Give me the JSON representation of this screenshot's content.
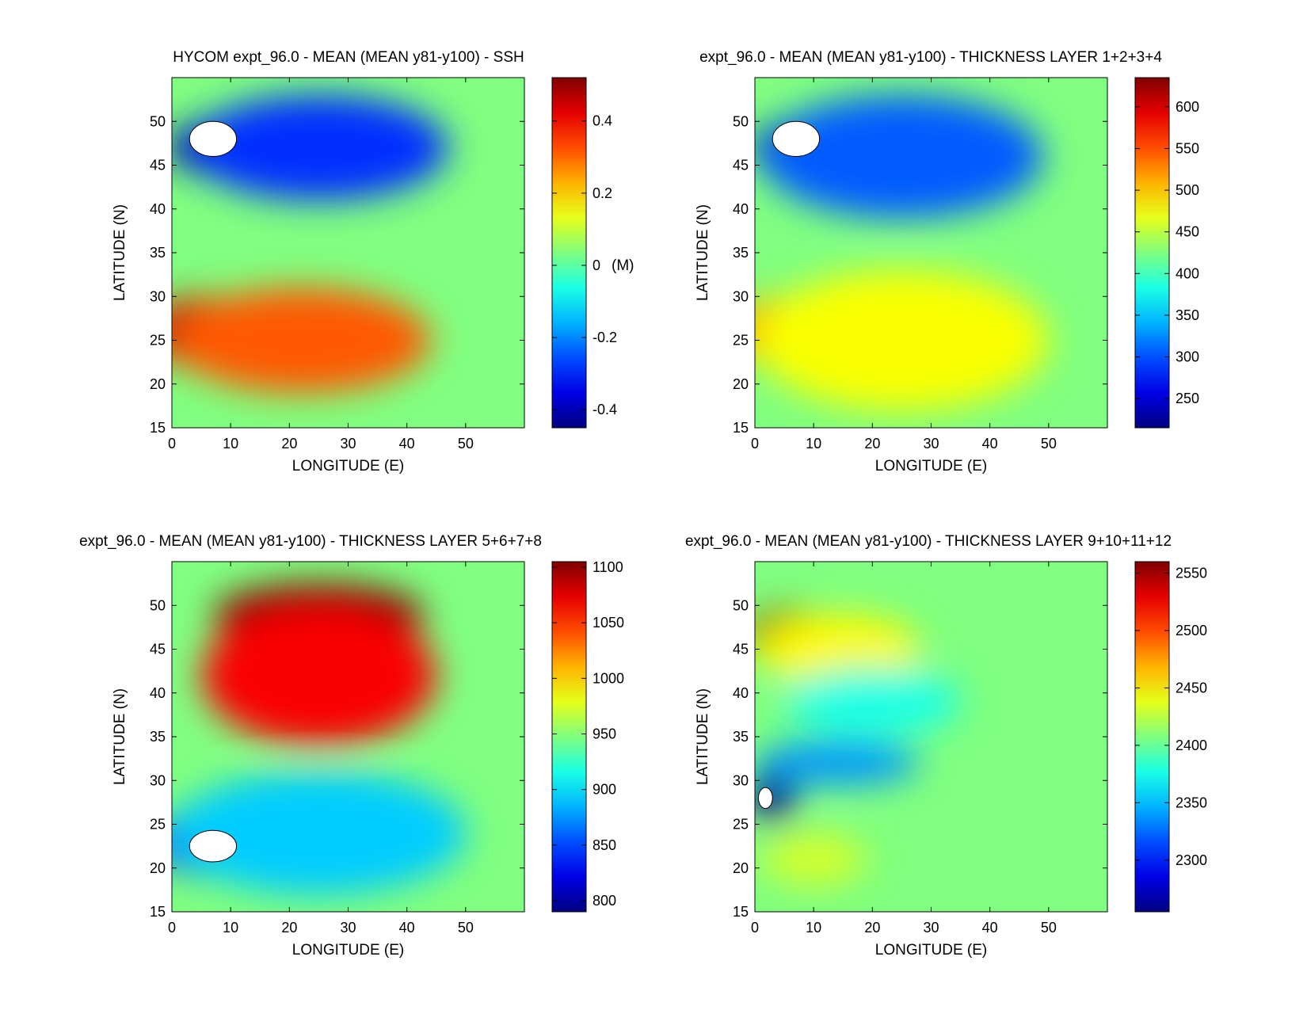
{
  "chart_data": [
    {
      "type": "heatmap",
      "title": "HYCOM expt_96.0 - MEAN (MEAN y81-y100) - SSH",
      "xlabel": "LONGITUDE (E)",
      "ylabel": "LATITUDE (N)",
      "xlim": [
        0,
        60
      ],
      "ylim": [
        15,
        55
      ],
      "xticks": [
        0,
        10,
        20,
        30,
        40,
        50
      ],
      "yticks": [
        15,
        20,
        25,
        30,
        35,
        40,
        45,
        50
      ],
      "colorbar": {
        "range": [
          -0.45,
          0.52
        ],
        "ticks": [
          0.4,
          0.2,
          0,
          -0.2,
          -0.4
        ],
        "unit": "(M)"
      },
      "field": {
        "features": [
          {
            "value": -0.47,
            "lon": 12,
            "lat": 47,
            "sx": 13,
            "sy": 3.5
          },
          {
            "value": -0.32,
            "lon": 25,
            "lat": 47,
            "sx": 22,
            "sy": 6
          },
          {
            "value": 0.42,
            "lon": 5,
            "lat": 26,
            "sx": 10,
            "sy": 4
          },
          {
            "value": 0.28,
            "lon": 22,
            "lat": 25,
            "sx": 22,
            "sy": 6
          }
        ],
        "holes": [
          {
            "lon": 7,
            "lat": 48,
            "rx": 4,
            "ry": 2
          }
        ]
      }
    },
    {
      "type": "heatmap",
      "title": "expt_96.0 - MEAN (MEAN y81-y100) - THICKNESS LAYER 1+2+3+4",
      "xlabel": "LONGITUDE (E)",
      "ylabel": "LATITUDE (N)",
      "xlim": [
        0,
        60
      ],
      "ylim": [
        15,
        55
      ],
      "xticks": [
        0,
        10,
        20,
        30,
        40,
        50
      ],
      "yticks": [
        15,
        20,
        25,
        30,
        35,
        40,
        45,
        50
      ],
      "colorbar": {
        "range": [
          215,
          635
        ],
        "ticks": [
          600,
          550,
          500,
          450,
          400,
          350,
          300,
          250
        ],
        "unit": ""
      },
      "field": {
        "features": [
          {
            "value": -230,
            "lon": 12,
            "lat": 47,
            "sx": 13,
            "sy": 3.5
          },
          {
            "value": -120,
            "lon": 25,
            "lat": 46,
            "sx": 24,
            "sy": 7
          },
          {
            "value": 90,
            "lon": 5,
            "lat": 26,
            "sx": 10,
            "sy": 4
          },
          {
            "value": 50,
            "lon": 25,
            "lat": 25,
            "sx": 25,
            "sy": 8
          }
        ],
        "holes": [
          {
            "lon": 7,
            "lat": 48,
            "rx": 4,
            "ry": 2
          }
        ]
      }
    },
    {
      "type": "heatmap",
      "title": "expt_96.0 - MEAN (MEAN y81-y100) - THICKNESS LAYER 5+6+7+8",
      "xlabel": "LONGITUDE (E)",
      "ylabel": "LATITUDE (N)",
      "xlim": [
        0,
        60
      ],
      "ylim": [
        15,
        55
      ],
      "xticks": [
        0,
        10,
        20,
        30,
        40,
        50
      ],
      "yticks": [
        15,
        20,
        25,
        30,
        35,
        40,
        45,
        50
      ],
      "colorbar": {
        "range": [
          790,
          1105
        ],
        "ticks": [
          1100,
          1050,
          1000,
          950,
          900,
          850,
          800
        ],
        "unit": ""
      },
      "field": {
        "features": [
          {
            "value": 200,
            "lon": 25,
            "lat": 49,
            "sx": 18,
            "sy": 3.5
          },
          {
            "value": 120,
            "lon": 25,
            "lat": 42,
            "sx": 20,
            "sy": 8
          },
          {
            "value": -110,
            "lon": 10,
            "lat": 23,
            "sx": 14,
            "sy": 4
          },
          {
            "value": -55,
            "lon": 25,
            "lat": 24,
            "sx": 25,
            "sy": 7
          }
        ],
        "holes": [
          {
            "lon": 7,
            "lat": 22.5,
            "rx": 4,
            "ry": 1.8
          }
        ]
      }
    },
    {
      "type": "heatmap",
      "title": "expt_96.0 - MEAN (MEAN y81-y100) - THICKNESS LAYER 9+10+11+12",
      "xlabel": "LONGITUDE (E)",
      "ylabel": "LATITUDE (N)",
      "xlim": [
        0,
        60
      ],
      "ylim": [
        15,
        55
      ],
      "xticks": [
        0,
        10,
        20,
        30,
        40,
        50
      ],
      "yticks": [
        15,
        20,
        25,
        30,
        35,
        40,
        45,
        50
      ],
      "colorbar": {
        "range": [
          2255,
          2560
        ],
        "ticks": [
          2550,
          2500,
          2450,
          2400,
          2350,
          2300
        ],
        "unit": ""
      },
      "field": {
        "features": [
          {
            "value": 150,
            "lon": 6,
            "lat": 46.5,
            "sx": 8,
            "sy": 3
          },
          {
            "value": 40,
            "lon": 14,
            "lat": 45,
            "sx": 14,
            "sy": 4
          },
          {
            "value": -150,
            "lon": 3,
            "lat": 28,
            "sx": 4,
            "sy": 3
          },
          {
            "value": -70,
            "lon": 14,
            "lat": 32,
            "sx": 14,
            "sy": 2.5
          },
          {
            "value": -30,
            "lon": 20,
            "lat": 39,
            "sx": 15,
            "sy": 4
          },
          {
            "value": 25,
            "lon": 10,
            "lat": 21,
            "sx": 9,
            "sy": 3
          }
        ],
        "holes": [
          {
            "lon": 1.8,
            "lat": 28,
            "rx": 1.2,
            "ry": 1.2
          }
        ]
      }
    }
  ]
}
